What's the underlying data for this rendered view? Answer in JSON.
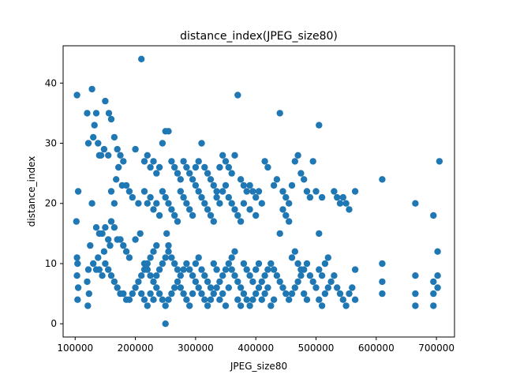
{
  "chart_data": {
    "type": "scatter",
    "title": "distance_index(JPEG_size80)",
    "xlabel": "JPEG_size80",
    "ylabel": "distance_index",
    "xlim": [
      80000,
      730000
    ],
    "ylim": [
      -2.2,
      46.2
    ],
    "x_ticks": [
      100000,
      200000,
      300000,
      400000,
      500000,
      600000,
      700000
    ],
    "x_tick_labels": [
      "100000",
      "200000",
      "300000",
      "400000",
      "500000",
      "600000",
      "700000"
    ],
    "y_ticks": [
      0,
      10,
      20,
      30,
      40
    ],
    "y_tick_labels": [
      "0",
      "10",
      "20",
      "30",
      "40"
    ],
    "grid": false,
    "marker_color": "#1f77b4",
    "points": [
      [
        103000,
        38
      ],
      [
        105000,
        22
      ],
      [
        102000,
        17
      ],
      [
        103000,
        11
      ],
      [
        104000,
        10
      ],
      [
        103000,
        8
      ],
      [
        105000,
        6
      ],
      [
        104000,
        4
      ],
      [
        120000,
        35
      ],
      [
        122000,
        30
      ],
      [
        128000,
        39
      ],
      [
        132000,
        33
      ],
      [
        135000,
        35
      ],
      [
        138000,
        30
      ],
      [
        140000,
        28
      ],
      [
        143000,
        28
      ],
      [
        130000,
        31
      ],
      [
        125000,
        13
      ],
      [
        128000,
        20
      ],
      [
        122000,
        9
      ],
      [
        120000,
        7
      ],
      [
        123000,
        5
      ],
      [
        121000,
        3
      ],
      [
        150000,
        37
      ],
      [
        156000,
        35
      ],
      [
        160000,
        34
      ],
      [
        165000,
        31
      ],
      [
        148000,
        29
      ],
      [
        155000,
        28
      ],
      [
        170000,
        29
      ],
      [
        175000,
        28
      ],
      [
        180000,
        27
      ],
      [
        172000,
        26
      ],
      [
        168000,
        24
      ],
      [
        178000,
        23
      ],
      [
        160000,
        22
      ],
      [
        165000,
        20
      ],
      [
        185000,
        23
      ],
      [
        190000,
        22
      ],
      [
        195000,
        21
      ],
      [
        200000,
        29
      ],
      [
        210000,
        44
      ],
      [
        205000,
        20
      ],
      [
        208000,
        15
      ],
      [
        200000,
        14
      ],
      [
        135000,
        16
      ],
      [
        140000,
        15
      ],
      [
        145000,
        15
      ],
      [
        150000,
        16
      ],
      [
        155000,
        14
      ],
      [
        160000,
        17
      ],
      [
        165000,
        16
      ],
      [
        170000,
        14
      ],
      [
        175000,
        14
      ],
      [
        180000,
        13
      ],
      [
        185000,
        12
      ],
      [
        190000,
        11
      ],
      [
        158000,
        13
      ],
      [
        148000,
        12
      ],
      [
        138000,
        11
      ],
      [
        130000,
        10
      ],
      [
        135000,
        9
      ],
      [
        140000,
        9
      ],
      [
        145000,
        8
      ],
      [
        150000,
        10
      ],
      [
        155000,
        9
      ],
      [
        160000,
        8
      ],
      [
        165000,
        7
      ],
      [
        170000,
        6
      ],
      [
        175000,
        5
      ],
      [
        180000,
        5
      ],
      [
        185000,
        4
      ],
      [
        190000,
        4
      ],
      [
        195000,
        5
      ],
      [
        200000,
        6
      ],
      [
        205000,
        7
      ],
      [
        210000,
        8
      ],
      [
        215000,
        9
      ],
      [
        220000,
        10
      ],
      [
        225000,
        11
      ],
      [
        230000,
        12
      ],
      [
        235000,
        13
      ],
      [
        215000,
        27
      ],
      [
        220000,
        28
      ],
      [
        225000,
        26
      ],
      [
        230000,
        27
      ],
      [
        235000,
        25
      ],
      [
        240000,
        26
      ],
      [
        245000,
        30
      ],
      [
        250000,
        32
      ],
      [
        255000,
        32
      ],
      [
        260000,
        27
      ],
      [
        265000,
        26
      ],
      [
        270000,
        25
      ],
      [
        275000,
        24
      ],
      [
        280000,
        27
      ],
      [
        285000,
        26
      ],
      [
        290000,
        25
      ],
      [
        295000,
        24
      ],
      [
        300000,
        26
      ],
      [
        305000,
        27
      ],
      [
        310000,
        30
      ],
      [
        315000,
        26
      ],
      [
        320000,
        25
      ],
      [
        325000,
        24
      ],
      [
        330000,
        23
      ],
      [
        335000,
        22
      ],
      [
        340000,
        26
      ],
      [
        345000,
        28
      ],
      [
        350000,
        27
      ],
      [
        355000,
        26
      ],
      [
        360000,
        25
      ],
      [
        365000,
        28
      ],
      [
        370000,
        38
      ],
      [
        375000,
        24
      ],
      [
        380000,
        23
      ],
      [
        385000,
        22
      ],
      [
        390000,
        23
      ],
      [
        395000,
        22
      ],
      [
        400000,
        21
      ],
      [
        215000,
        22
      ],
      [
        220000,
        20
      ],
      [
        225000,
        21
      ],
      [
        230000,
        19
      ],
      [
        235000,
        20
      ],
      [
        240000,
        18
      ],
      [
        245000,
        22
      ],
      [
        250000,
        21
      ],
      [
        255000,
        20
      ],
      [
        260000,
        19
      ],
      [
        265000,
        18
      ],
      [
        270000,
        17
      ],
      [
        275000,
        22
      ],
      [
        280000,
        21
      ],
      [
        285000,
        20
      ],
      [
        290000,
        19
      ],
      [
        295000,
        18
      ],
      [
        300000,
        23
      ],
      [
        305000,
        22
      ],
      [
        310000,
        21
      ],
      [
        315000,
        20
      ],
      [
        320000,
        19
      ],
      [
        325000,
        18
      ],
      [
        330000,
        17
      ],
      [
        335000,
        21
      ],
      [
        340000,
        20
      ],
      [
        345000,
        22
      ],
      [
        350000,
        23
      ],
      [
        355000,
        21
      ],
      [
        360000,
        20
      ],
      [
        365000,
        19
      ],
      [
        370000,
        18
      ],
      [
        375000,
        17
      ],
      [
        380000,
        20
      ],
      [
        390000,
        19
      ],
      [
        400000,
        18
      ],
      [
        405000,
        22
      ],
      [
        410000,
        20
      ],
      [
        415000,
        27
      ],
      [
        420000,
        26
      ],
      [
        430000,
        23
      ],
      [
        435000,
        24
      ],
      [
        440000,
        35
      ],
      [
        445000,
        22
      ],
      [
        450000,
        21
      ],
      [
        455000,
        20
      ],
      [
        460000,
        23
      ],
      [
        465000,
        27
      ],
      [
        470000,
        28
      ],
      [
        475000,
        25
      ],
      [
        480000,
        24
      ],
      [
        485000,
        22
      ],
      [
        490000,
        21
      ],
      [
        495000,
        27
      ],
      [
        500000,
        22
      ],
      [
        505000,
        33
      ],
      [
        510000,
        21
      ],
      [
        440000,
        15
      ],
      [
        445000,
        19
      ],
      [
        450000,
        18
      ],
      [
        455000,
        17
      ],
      [
        530000,
        22
      ],
      [
        535000,
        21
      ],
      [
        540000,
        20
      ],
      [
        545000,
        21
      ],
      [
        550000,
        20
      ],
      [
        555000,
        19
      ],
      [
        565000,
        22
      ],
      [
        505000,
        15
      ],
      [
        610000,
        24
      ],
      [
        665000,
        20
      ],
      [
        695000,
        18
      ],
      [
        705000,
        27
      ],
      [
        215000,
        10
      ],
      [
        220000,
        9
      ],
      [
        225000,
        8
      ],
      [
        230000,
        7
      ],
      [
        235000,
        6
      ],
      [
        240000,
        5
      ],
      [
        245000,
        4
      ],
      [
        250000,
        3
      ],
      [
        255000,
        4
      ],
      [
        260000,
        5
      ],
      [
        265000,
        6
      ],
      [
        270000,
        7
      ],
      [
        275000,
        8
      ],
      [
        280000,
        9
      ],
      [
        285000,
        10
      ],
      [
        290000,
        9
      ],
      [
        295000,
        8
      ],
      [
        300000,
        7
      ],
      [
        305000,
        6
      ],
      [
        310000,
        5
      ],
      [
        315000,
        4
      ],
      [
        320000,
        3
      ],
      [
        325000,
        4
      ],
      [
        330000,
        5
      ],
      [
        335000,
        6
      ],
      [
        340000,
        7
      ],
      [
        345000,
        8
      ],
      [
        350000,
        9
      ],
      [
        355000,
        10
      ],
      [
        360000,
        9
      ],
      [
        365000,
        8
      ],
      [
        370000,
        7
      ],
      [
        375000,
        6
      ],
      [
        380000,
        5
      ],
      [
        385000,
        4
      ],
      [
        390000,
        3
      ],
      [
        395000,
        4
      ],
      [
        400000,
        5
      ],
      [
        405000,
        6
      ],
      [
        410000,
        7
      ],
      [
        415000,
        8
      ],
      [
        420000,
        9
      ],
      [
        425000,
        10
      ],
      [
        430000,
        9
      ],
      [
        435000,
        8
      ],
      [
        440000,
        7
      ],
      [
        445000,
        6
      ],
      [
        450000,
        5
      ],
      [
        455000,
        4
      ],
      [
        460000,
        5
      ],
      [
        465000,
        6
      ],
      [
        470000,
        7
      ],
      [
        475000,
        8
      ],
      [
        480000,
        9
      ],
      [
        485000,
        10
      ],
      [
        490000,
        8
      ],
      [
        495000,
        7
      ],
      [
        500000,
        6
      ],
      [
        505000,
        4
      ],
      [
        510000,
        3
      ],
      [
        515000,
        5
      ],
      [
        520000,
        6
      ],
      [
        525000,
        7
      ],
      [
        530000,
        8
      ],
      [
        535000,
        6
      ],
      [
        540000,
        5
      ],
      [
        545000,
        4
      ],
      [
        550000,
        3
      ],
      [
        555000,
        5
      ],
      [
        560000,
        6
      ],
      [
        565000,
        9
      ],
      [
        565000,
        4
      ],
      [
        210000,
        5
      ],
      [
        215000,
        4
      ],
      [
        220000,
        3
      ],
      [
        225000,
        5
      ],
      [
        230000,
        4
      ],
      [
        235000,
        8
      ],
      [
        240000,
        9
      ],
      [
        245000,
        10
      ],
      [
        250000,
        11
      ],
      [
        255000,
        12
      ],
      [
        260000,
        11
      ],
      [
        265000,
        10
      ],
      [
        270000,
        9
      ],
      [
        275000,
        6
      ],
      [
        280000,
        5
      ],
      [
        285000,
        4
      ],
      [
        290000,
        3
      ],
      [
        295000,
        5
      ],
      [
        300000,
        10
      ],
      [
        305000,
        11
      ],
      [
        310000,
        9
      ],
      [
        315000,
        8
      ],
      [
        320000,
        7
      ],
      [
        325000,
        6
      ],
      [
        330000,
        10
      ],
      [
        335000,
        9
      ],
      [
        340000,
        4
      ],
      [
        345000,
        5
      ],
      [
        350000,
        3
      ],
      [
        355000,
        6
      ],
      [
        360000,
        11
      ],
      [
        365000,
        12
      ],
      [
        370000,
        4
      ],
      [
        375000,
        3
      ],
      [
        380000,
        10
      ],
      [
        385000,
        9
      ],
      [
        390000,
        8
      ],
      [
        395000,
        7
      ],
      [
        400000,
        9
      ],
      [
        405000,
        10
      ],
      [
        410000,
        4
      ],
      [
        415000,
        5
      ],
      [
        420000,
        6
      ],
      [
        425000,
        3
      ],
      [
        430000,
        4
      ],
      [
        460000,
        11
      ],
      [
        465000,
        12
      ],
      [
        470000,
        10
      ],
      [
        475000,
        9
      ],
      [
        480000,
        5
      ],
      [
        485000,
        4
      ],
      [
        505000,
        9
      ],
      [
        510000,
        8
      ],
      [
        515000,
        10
      ],
      [
        520000,
        11
      ],
      [
        252000,
        15
      ],
      [
        255000,
        13
      ],
      [
        250000,
        0
      ],
      [
        610000,
        10
      ],
      [
        610000,
        7
      ],
      [
        610000,
        5
      ],
      [
        665000,
        8
      ],
      [
        665000,
        5
      ],
      [
        665000,
        3
      ],
      [
        695000,
        7
      ],
      [
        695000,
        5
      ],
      [
        695000,
        3
      ],
      [
        702000,
        12
      ],
      [
        702000,
        8
      ],
      [
        702000,
        6
      ]
    ]
  }
}
